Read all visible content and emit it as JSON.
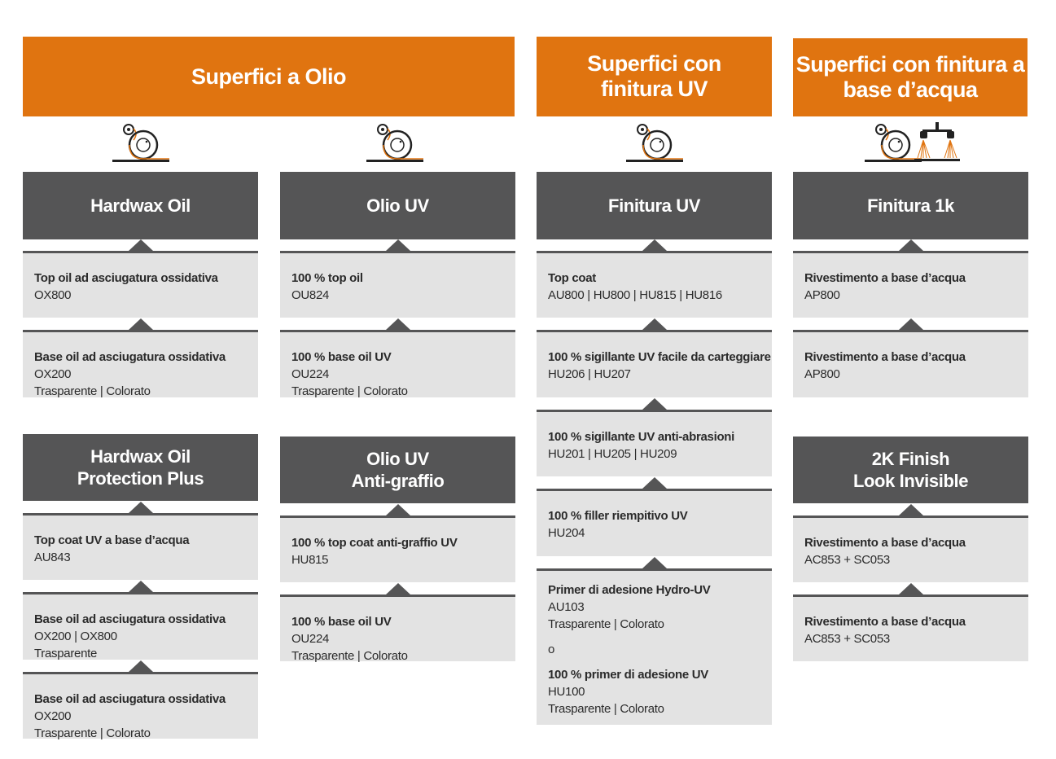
{
  "colors": {
    "accent": "#e07410",
    "dark": "#555556",
    "box": "#e3e3e3"
  },
  "categories": [
    {
      "title": "Superfici a Olio"
    },
    {
      "title": "Superfici con finitura UV"
    },
    {
      "title": "Superfici con finitura a base d’acqua"
    }
  ],
  "icons": [
    "roller-icon",
    "roller-icon",
    "roller-icon",
    "roller-icon",
    "spray-nozzle-icon"
  ],
  "columns": [
    {
      "groups": [
        {
          "title": "Hardwax Oil",
          "items": [
            {
              "lines": [
                "Top oil ad asciugatura ossidativa",
                "OX800"
              ]
            },
            {
              "lines": [
                "Base oil ad asciugatura ossidativa",
                "OX200",
                "Trasparente | Colorato"
              ]
            }
          ]
        },
        {
          "title": "Hardwax Oil\nProtection Plus",
          "items": [
            {
              "lines": [
                "Top coat UV a base d’acqua",
                "AU843"
              ]
            },
            {
              "lines": [
                "Base oil ad asciugatura ossidativa",
                "OX200 | OX800",
                "Trasparente"
              ]
            },
            {
              "lines": [
                "Base oil ad asciugatura ossidativa",
                "OX200",
                "Trasparente | Colorato"
              ]
            }
          ]
        }
      ]
    },
    {
      "groups": [
        {
          "title": "Olio UV",
          "items": [
            {
              "lines": [
                "100 % top oil",
                "OU824"
              ]
            },
            {
              "lines": [
                "100 % base oil UV",
                "OU224",
                "Trasparente | Colorato"
              ]
            }
          ]
        },
        {
          "title": "Olio UV\nAnti-graffio",
          "items": [
            {
              "lines": [
                "100 % top coat anti-graffio UV",
                "HU815"
              ]
            },
            {
              "lines": [
                "100 % base oil UV",
                "OU224",
                "Trasparente | Colorato"
              ]
            }
          ]
        }
      ]
    },
    {
      "groups": [
        {
          "title": "Finitura UV",
          "items": [
            {
              "lines": [
                "Top coat",
                "AU800 | HU800 | HU815 | HU816"
              ]
            },
            {
              "lines": [
                "100 % sigillante UV facile da carteggiare",
                "HU206 | HU207"
              ]
            },
            {
              "lines": [
                "100 % sigillante UV anti-abrasioni",
                "HU201 | HU205 | HU209"
              ]
            },
            {
              "lines": [
                "100 % filler riempitivo UV",
                "HU204"
              ]
            },
            {
              "lines": [
                "Primer di adesione Hydro-UV",
                "AU103",
                "Trasparente | Colorato",
                "",
                "o",
                "",
                "100 % primer di adesione UV",
                "HU100",
                "Trasparente | Colorato"
              ]
            }
          ]
        }
      ]
    },
    {
      "groups": [
        {
          "title": "Finitura 1k",
          "items": [
            {
              "lines": [
                "Rivestimento a base d’acqua",
                "AP800"
              ]
            },
            {
              "lines": [
                "Rivestimento a base d’acqua",
                "AP800"
              ]
            }
          ]
        },
        {
          "title": "2K Finish\nLook Invisible",
          "items": [
            {
              "lines": [
                "Rivestimento a base d’acqua",
                "AC853 + SC053"
              ]
            },
            {
              "lines": [
                "Rivestimento a base d’acqua",
                "AC853 + SC053"
              ]
            }
          ]
        }
      ]
    }
  ]
}
